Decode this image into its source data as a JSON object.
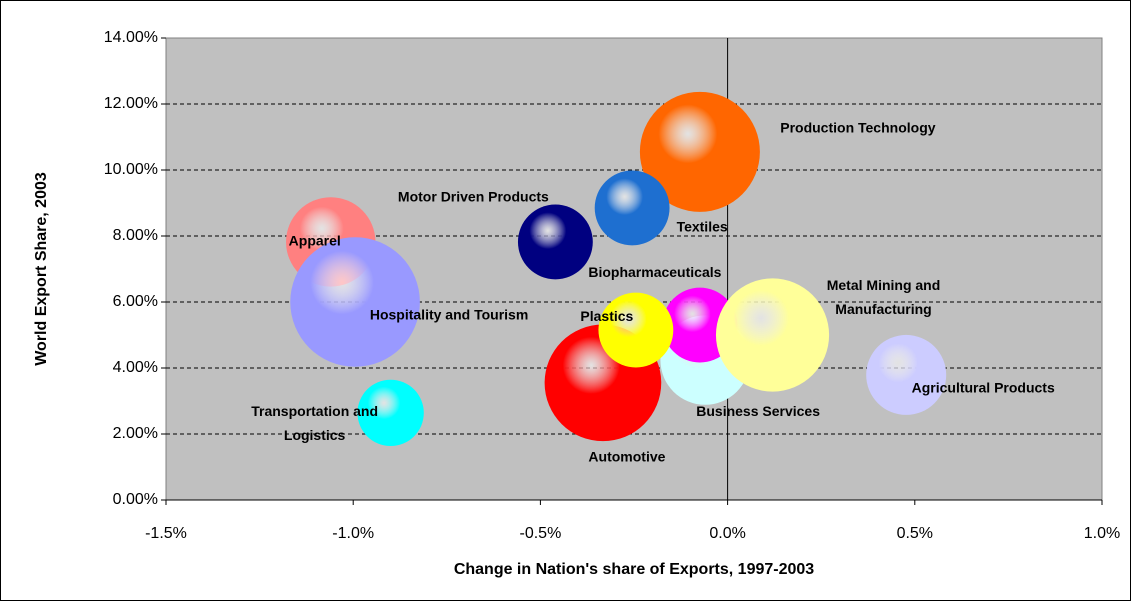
{
  "chart_data": {
    "type": "bubble",
    "x_label": "Change in Nation's share of Exports, 1997-2003",
    "y_label": "World Export Share, 2003",
    "xlim": [
      -1.5,
      1.0
    ],
    "ylim": [
      0,
      14
    ],
    "xticks": [
      {
        "value": -1.5,
        "label": "-1.5%"
      },
      {
        "value": -1.0,
        "label": "-1.0%"
      },
      {
        "value": -0.5,
        "label": "-0.5%"
      },
      {
        "value": 0,
        "label": "0.0%"
      },
      {
        "value": 0.5,
        "label": "0.5%"
      },
      {
        "value": 1.0,
        "label": "1.0%"
      }
    ],
    "yticks": [
      {
        "value": 0,
        "label": "0.00%"
      },
      {
        "value": 2,
        "label": "2.00%"
      },
      {
        "value": 4,
        "label": "4.00%"
      },
      {
        "value": 6,
        "label": "6.00%"
      },
      {
        "value": 8,
        "label": "8.00%"
      },
      {
        "value": 10,
        "label": "10.00%"
      },
      {
        "value": 12,
        "label": "12.00%"
      },
      {
        "value": 14,
        "label": "14.00%"
      }
    ],
    "grid": true,
    "points": [
      {
        "name": "Production Technology",
        "x": -0.074,
        "y": 10.55,
        "size": 36,
        "color": "#ff6600"
      },
      {
        "name": "Textiles",
        "x": -0.255,
        "y": 8.85,
        "size": 14,
        "color": "#1e6fd0"
      },
      {
        "name": "Motor Driven Products",
        "x": -0.46,
        "y": 7.82,
        "size": 14,
        "color": "#000080"
      },
      {
        "name": "Apparel",
        "x": -1.06,
        "y": 7.82,
        "size": 20,
        "color": "#ff8080"
      },
      {
        "name": "Hospitality and Tourism",
        "x": -0.995,
        "y": 6.0,
        "size": 42,
        "color": "#9999ff"
      },
      {
        "name": "Automotive",
        "x": -0.333,
        "y": 3.55,
        "size": 34,
        "color": "#ff0000"
      },
      {
        "name": "Business Services",
        "x": -0.06,
        "y": 4.24,
        "size": 20,
        "color": "#ccffff"
      },
      {
        "name": "Biopharmaceuticals",
        "x": -0.074,
        "y": 5.3,
        "size": 14,
        "color": "#ff00ff"
      },
      {
        "name": "Plastics",
        "x": -0.245,
        "y": 5.15,
        "size": 14,
        "color": "#ffff00"
      },
      {
        "name": "Metal Mining and Manufacturing",
        "x": 0.12,
        "y": 5.0,
        "size": 32,
        "color": "#ffff99"
      },
      {
        "name": "Agricultural Products",
        "x": 0.477,
        "y": 3.79,
        "size": 16,
        "color": "#ccccff"
      },
      {
        "name": "Transportation and Logistics",
        "x": -0.9,
        "y": 2.64,
        "size": 11,
        "color": "#00ffff"
      }
    ]
  }
}
